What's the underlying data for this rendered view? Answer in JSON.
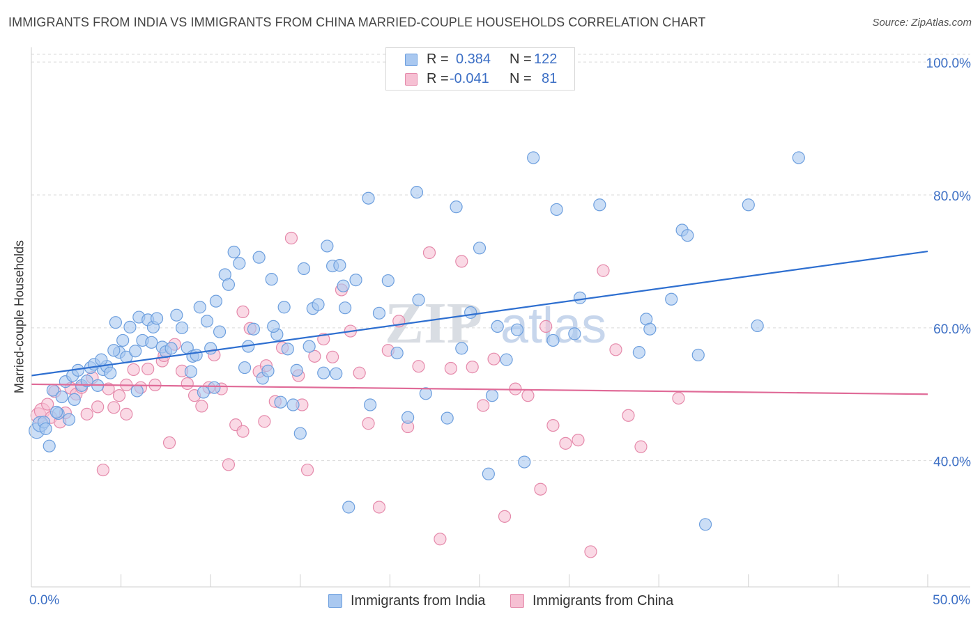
{
  "title": "IMMIGRANTS FROM INDIA VS IMMIGRANTS FROM CHINA MARRIED-COUPLE HOUSEHOLDS CORRELATION CHART",
  "source": "Source: ZipAtlas.com",
  "watermark": {
    "zip": "ZIP",
    "atlas": "atlas"
  },
  "legend": {
    "r_label": "R =",
    "n_label": "N =",
    "india": {
      "r": "0.384",
      "n": "122"
    },
    "china": {
      "r": "-0.041",
      "n": "81"
    }
  },
  "colors": {
    "india_fill": "#a9c8f0",
    "india_stroke": "#6d9fde",
    "india_line": "#2e6fd0",
    "china_fill": "#f6c0d3",
    "china_stroke": "#e58aab",
    "china_line": "#e06b98",
    "grid": "#d9d9d9",
    "axis_text": "#3c6fc5"
  },
  "chart_data": {
    "type": "scatter",
    "title": "IMMIGRANTS FROM INDIA VS IMMIGRANTS FROM CHINA MARRIED-COUPLE HOUSEHOLDS CORRELATION CHART",
    "xlabel": "",
    "ylabel": "Married-couple Households",
    "xlim": [
      0,
      50
    ],
    "ylim": [
      21,
      102
    ],
    "x_tick_labels": [
      "0.0%",
      "50.0%"
    ],
    "y_ticks": [
      40,
      60,
      80,
      100
    ],
    "y_tick_labels": [
      "40.0%",
      "60.0%",
      "80.0%",
      "100.0%"
    ],
    "grid": true,
    "series": [
      {
        "name": "Immigrants from India",
        "r": 0.384,
        "n": 122,
        "trend": {
          "x": [
            0,
            50
          ],
          "y": [
            52.8,
            71.5
          ]
        },
        "points": [
          [
            0.3,
            44.5
          ],
          [
            0.5,
            45.5
          ],
          [
            0.7,
            45.8
          ],
          [
            1.0,
            42.2
          ],
          [
            1.2,
            50.6
          ],
          [
            1.5,
            47.1
          ],
          [
            1.7,
            49.6
          ],
          [
            1.9,
            51.9
          ],
          [
            2.1,
            46.2
          ],
          [
            2.3,
            52.8
          ],
          [
            2.6,
            53.6
          ],
          [
            2.8,
            51.3
          ],
          [
            3.1,
            52.0
          ],
          [
            3.3,
            54.0
          ],
          [
            3.5,
            54.5
          ],
          [
            3.7,
            51.3
          ],
          [
            4.0,
            53.7
          ],
          [
            4.2,
            54.2
          ],
          [
            4.4,
            53.2
          ],
          [
            4.7,
            60.8
          ],
          [
            4.9,
            56.3
          ],
          [
            5.1,
            58.1
          ],
          [
            5.3,
            55.6
          ],
          [
            5.5,
            60.1
          ],
          [
            5.8,
            56.5
          ],
          [
            6.0,
            61.6
          ],
          [
            6.2,
            58.1
          ],
          [
            6.5,
            61.2
          ],
          [
            6.8,
            60.1
          ],
          [
            7.0,
            61.4
          ],
          [
            7.3,
            57.1
          ],
          [
            7.5,
            56.4
          ],
          [
            7.8,
            56.9
          ],
          [
            8.1,
            61.9
          ],
          [
            8.4,
            60.0
          ],
          [
            8.7,
            57.0
          ],
          [
            9.0,
            55.7
          ],
          [
            9.2,
            55.9
          ],
          [
            9.4,
            63.1
          ],
          [
            9.6,
            50.3
          ],
          [
            9.8,
            61.0
          ],
          [
            10.0,
            56.9
          ],
          [
            10.3,
            64.0
          ],
          [
            10.5,
            59.4
          ],
          [
            10.8,
            68.0
          ],
          [
            11.0,
            66.5
          ],
          [
            11.3,
            71.4
          ],
          [
            11.6,
            69.7
          ],
          [
            11.9,
            54.0
          ],
          [
            12.1,
            57.2
          ],
          [
            12.4,
            59.8
          ],
          [
            12.7,
            70.6
          ],
          [
            12.9,
            52.4
          ],
          [
            13.2,
            53.5
          ],
          [
            13.4,
            67.3
          ],
          [
            13.7,
            59.0
          ],
          [
            13.9,
            48.8
          ],
          [
            14.1,
            63.1
          ],
          [
            14.3,
            56.8
          ],
          [
            14.6,
            48.4
          ],
          [
            14.8,
            53.6
          ],
          [
            15.0,
            44.1
          ],
          [
            15.2,
            68.9
          ],
          [
            15.5,
            57.2
          ],
          [
            15.7,
            62.9
          ],
          [
            16.0,
            63.5
          ],
          [
            16.3,
            53.2
          ],
          [
            16.5,
            72.3
          ],
          [
            16.8,
            69.3
          ],
          [
            17.0,
            53.1
          ],
          [
            17.2,
            69.4
          ],
          [
            17.4,
            66.3
          ],
          [
            17.7,
            33.0
          ],
          [
            18.1,
            67.2
          ],
          [
            18.8,
            79.5
          ],
          [
            18.9,
            48.4
          ],
          [
            19.4,
            62.2
          ],
          [
            19.9,
            67.1
          ],
          [
            20.4,
            56.2
          ],
          [
            21.0,
            46.5
          ],
          [
            21.5,
            80.4
          ],
          [
            21.6,
            64.2
          ],
          [
            22.0,
            50.1
          ],
          [
            23.2,
            46.4
          ],
          [
            23.7,
            78.2
          ],
          [
            24.0,
            56.9
          ],
          [
            24.5,
            62.3
          ],
          [
            25.0,
            72.0
          ],
          [
            25.5,
            38.0
          ],
          [
            25.7,
            49.8
          ],
          [
            26.0,
            60.2
          ],
          [
            26.5,
            55.2
          ],
          [
            27.1,
            59.7
          ],
          [
            27.5,
            39.8
          ],
          [
            28.0,
            85.6
          ],
          [
            29.1,
            58.1
          ],
          [
            29.3,
            77.8
          ],
          [
            30.3,
            59.1
          ],
          [
            30.6,
            64.5
          ],
          [
            31.7,
            78.5
          ],
          [
            33.9,
            56.3
          ],
          [
            34.3,
            61.3
          ],
          [
            34.5,
            59.8
          ],
          [
            35.7,
            64.3
          ],
          [
            36.3,
            74.7
          ],
          [
            36.6,
            73.9
          ],
          [
            37.2,
            55.9
          ],
          [
            37.6,
            30.4
          ],
          [
            40.0,
            78.5
          ],
          [
            40.5,
            60.3
          ],
          [
            42.8,
            85.6
          ],
          [
            10.2,
            51.0
          ],
          [
            8.9,
            53.4
          ],
          [
            6.7,
            57.8
          ],
          [
            13.5,
            60.2
          ],
          [
            17.5,
            63.0
          ],
          [
            4.6,
            56.6
          ],
          [
            5.9,
            50.5
          ],
          [
            3.9,
            55.2
          ],
          [
            2.4,
            49.2
          ],
          [
            1.4,
            47.3
          ],
          [
            0.8,
            44.8
          ]
        ]
      },
      {
        "name": "Immigrants from China",
        "r": -0.041,
        "n": 81,
        "trend": {
          "x": [
            0,
            50
          ],
          "y": [
            51.5,
            50.0
          ]
        },
        "points": [
          [
            0.4,
            46.8
          ],
          [
            0.6,
            47.5
          ],
          [
            0.9,
            48.5
          ],
          [
            1.1,
            46.5
          ],
          [
            1.3,
            50.4
          ],
          [
            1.6,
            45.8
          ],
          [
            1.9,
            47.2
          ],
          [
            2.2,
            50.9
          ],
          [
            2.5,
            50.0
          ],
          [
            2.8,
            51.0
          ],
          [
            3.1,
            47.0
          ],
          [
            3.4,
            52.5
          ],
          [
            3.7,
            48.1
          ],
          [
            4.0,
            38.6
          ],
          [
            4.3,
            50.8
          ],
          [
            4.6,
            48.0
          ],
          [
            4.9,
            49.8
          ],
          [
            5.3,
            51.4
          ],
          [
            5.7,
            53.7
          ],
          [
            6.1,
            51.0
          ],
          [
            6.5,
            53.8
          ],
          [
            6.9,
            51.4
          ],
          [
            7.3,
            55.0
          ],
          [
            7.7,
            42.7
          ],
          [
            8.0,
            57.5
          ],
          [
            8.4,
            53.5
          ],
          [
            8.7,
            51.6
          ],
          [
            9.1,
            49.8
          ],
          [
            9.5,
            48.2
          ],
          [
            9.9,
            51.0
          ],
          [
            10.2,
            55.9
          ],
          [
            10.6,
            50.8
          ],
          [
            11.0,
            39.4
          ],
          [
            11.4,
            45.4
          ],
          [
            11.8,
            62.4
          ],
          [
            12.2,
            59.9
          ],
          [
            12.7,
            53.4
          ],
          [
            13.1,
            54.3
          ],
          [
            13.6,
            48.9
          ],
          [
            14.0,
            57.0
          ],
          [
            14.5,
            73.5
          ],
          [
            14.9,
            52.8
          ],
          [
            15.4,
            38.6
          ],
          [
            15.8,
            55.7
          ],
          [
            16.3,
            58.3
          ],
          [
            16.8,
            55.6
          ],
          [
            17.3,
            65.7
          ],
          [
            17.8,
            59.5
          ],
          [
            18.3,
            53.2
          ],
          [
            18.8,
            45.6
          ],
          [
            19.4,
            33.0
          ],
          [
            19.9,
            56.6
          ],
          [
            20.5,
            61.0
          ],
          [
            21.0,
            45.1
          ],
          [
            21.6,
            54.2
          ],
          [
            22.2,
            71.3
          ],
          [
            22.8,
            28.2
          ],
          [
            23.4,
            53.9
          ],
          [
            24.0,
            70.0
          ],
          [
            24.6,
            54.1
          ],
          [
            25.2,
            48.3
          ],
          [
            25.8,
            55.3
          ],
          [
            26.4,
            31.6
          ],
          [
            27.0,
            50.8
          ],
          [
            27.7,
            49.8
          ],
          [
            28.4,
            35.7
          ],
          [
            29.1,
            45.3
          ],
          [
            29.8,
            42.6
          ],
          [
            30.5,
            43.1
          ],
          [
            31.2,
            26.3
          ],
          [
            31.9,
            68.6
          ],
          [
            32.6,
            56.7
          ],
          [
            33.3,
            46.8
          ],
          [
            34.0,
            42.1
          ],
          [
            36.1,
            49.4
          ],
          [
            13.0,
            45.9
          ],
          [
            28.7,
            60.2
          ],
          [
            15.1,
            48.4
          ],
          [
            11.8,
            44.4
          ],
          [
            7.4,
            55.8
          ],
          [
            5.3,
            47.0
          ]
        ]
      }
    ]
  },
  "bottom_legend": {
    "india": "Immigrants from India",
    "china": "Immigrants from China"
  }
}
